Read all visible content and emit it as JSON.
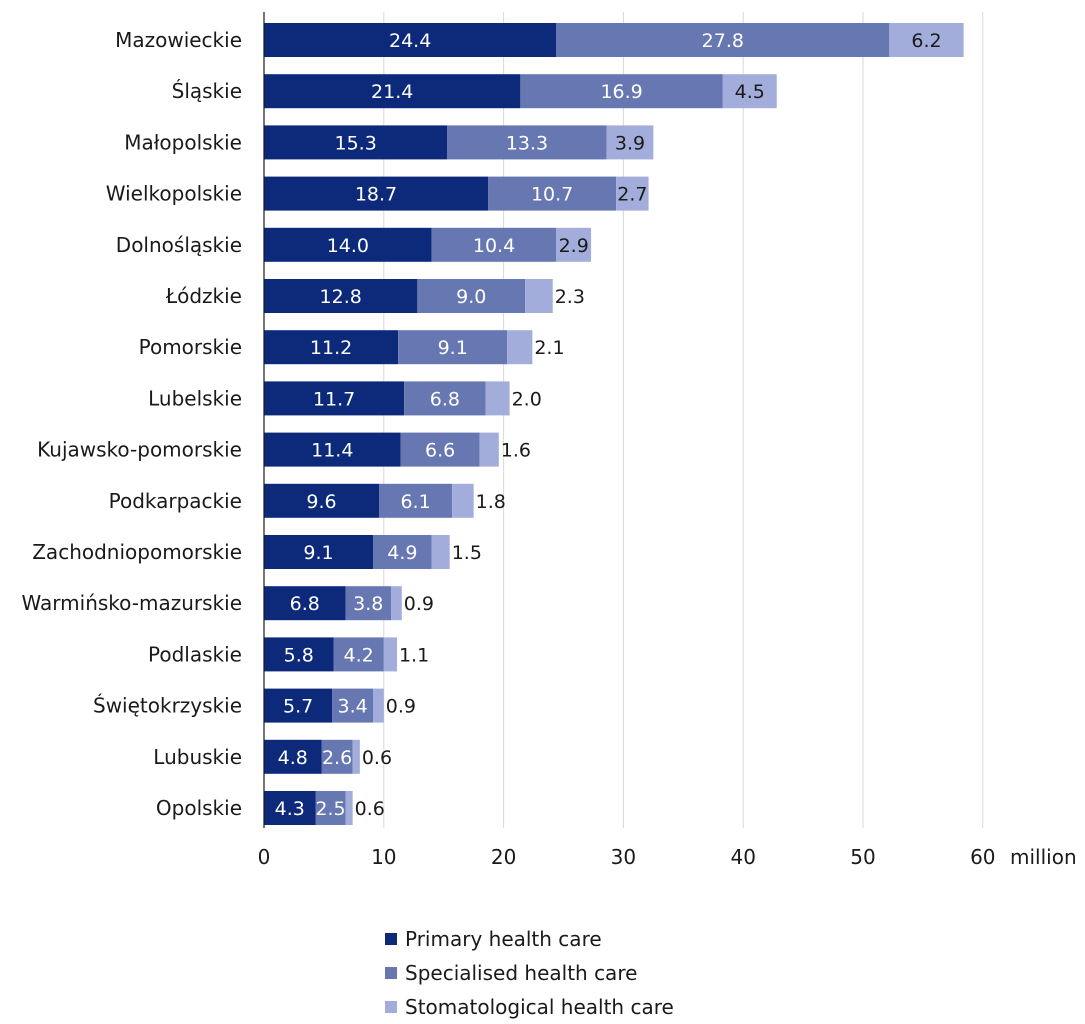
{
  "chart_data": {
    "type": "bar",
    "orientation": "horizontal",
    "stacked": true,
    "categories": [
      "Mazowieckie",
      "Śląskie",
      "Małopolskie",
      "Wielkopolskie",
      "Dolnośląskie",
      "Łódzkie",
      "Pomorskie",
      "Lubelskie",
      "Kujawsko-pomorskie",
      "Podkarpackie",
      "Zachodniopomorskie",
      "Warmińsko-mazurskie",
      "Podlaskie",
      "Świętokrzyskie",
      "Lubuskie",
      "Opolskie"
    ],
    "series": [
      {
        "name": "Primary health care",
        "color": "#0d2a7a",
        "values": [
          24.4,
          21.4,
          15.3,
          18.7,
          14.0,
          12.8,
          11.2,
          11.7,
          11.4,
          9.6,
          9.1,
          6.8,
          5.8,
          5.7,
          4.8,
          4.3
        ],
        "labels": [
          "24.4",
          "21.4",
          "15.3",
          "18.7",
          "14.0",
          "12.8",
          "11.2",
          "11.7",
          "11.4",
          "9.6",
          "9.1",
          "6.8",
          "5.8",
          "5.7",
          "4.8",
          "4.3"
        ]
      },
      {
        "name": "Specialised health care",
        "color": "#6777b2",
        "values": [
          27.8,
          16.9,
          13.3,
          10.7,
          10.4,
          9.0,
          9.1,
          6.8,
          6.6,
          6.1,
          4.9,
          3.8,
          4.2,
          3.4,
          2.6,
          2.5
        ],
        "labels": [
          "27.8",
          "16.9",
          "13.3",
          "10.7",
          "10.4",
          "9.0",
          "9.1",
          "6.8",
          "6.6",
          "6.1",
          "4.9",
          "3.8",
          "4.2",
          "3.4",
          "2.6",
          "2.5"
        ]
      },
      {
        "name": "Stomatological health care",
        "color": "#a3addb",
        "values": [
          6.2,
          4.5,
          3.9,
          2.7,
          2.9,
          2.3,
          2.1,
          2.0,
          1.6,
          1.8,
          1.5,
          0.9,
          1.1,
          0.9,
          0.6,
          0.6
        ],
        "labels": [
          "6.2",
          "4.5",
          "3.9",
          "2.7",
          "2.9",
          "2.3",
          "2.1",
          "2.0",
          "1.6",
          "1.8",
          "1.5",
          "0.9",
          "1.1",
          "0.9",
          "0.6",
          "0.6"
        ]
      }
    ],
    "xlim": [
      0,
      60
    ],
    "xticks": [
      "0",
      "10",
      "20",
      "30",
      "40",
      "50",
      "60"
    ],
    "unit": "million",
    "grid": true,
    "legend_position": "bottom"
  }
}
